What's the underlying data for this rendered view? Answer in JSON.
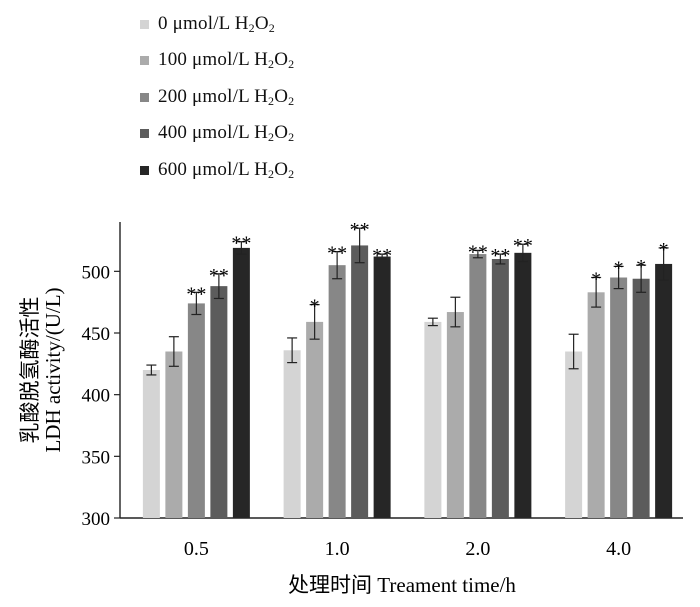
{
  "chart_data": {
    "type": "bar",
    "xlabel": "处理时间  Treament time/h",
    "ylabel_cn": "乳酸脱氢酶活性",
    "ylabel_en": "LDH activity/(U/L)",
    "ylim": [
      300,
      540
    ],
    "yticks": [
      "300",
      "350",
      "400",
      "450",
      "500"
    ],
    "categories": [
      "0.5",
      "1.0",
      "2.0",
      "4.0"
    ],
    "legend_position": "top-left",
    "grid": false,
    "series": [
      {
        "name_main": "0 μmol/L H",
        "name_sub1": "2",
        "name_mid": "O",
        "name_sub2": "2",
        "color": "#d4d4d4",
        "values": [
          420,
          436,
          459,
          435
        ],
        "errors": [
          4,
          10,
          3,
          14
        ],
        "marks": [
          "",
          "",
          "",
          ""
        ]
      },
      {
        "name_main": "100 μmol/L H",
        "name_sub1": "2",
        "name_mid": "O",
        "name_sub2": "2",
        "color": "#ababab",
        "values": [
          435,
          459,
          467,
          483
        ],
        "errors": [
          12,
          14,
          12,
          12
        ],
        "marks": [
          "",
          "*",
          "",
          "*"
        ]
      },
      {
        "name_main": "200 μmol/L H",
        "name_sub1": "2",
        "name_mid": "O",
        "name_sub2": "2",
        "color": "#878787",
        "values": [
          474,
          505,
          514,
          495
        ],
        "errors": [
          9,
          11,
          3,
          9
        ],
        "marks": [
          "**",
          "**",
          "**",
          "*"
        ]
      },
      {
        "name_main": "400 μmol/L H",
        "name_sub1": "2",
        "name_mid": "O",
        "name_sub2": "2",
        "color": "#5c5c5c",
        "values": [
          488,
          521,
          510,
          494
        ],
        "errors": [
          10,
          14,
          4,
          11
        ],
        "marks": [
          "**",
          "**",
          "**",
          "*"
        ]
      },
      {
        "name_main": "600 μmol/L H",
        "name_sub1": "2",
        "name_mid": "O",
        "name_sub2": "2",
        "color": "#262626",
        "values": [
          519,
          512,
          515,
          506
        ],
        "errors": [
          5,
          2,
          7,
          13
        ],
        "marks": [
          "**",
          "**",
          "**",
          "*"
        ]
      }
    ]
  }
}
